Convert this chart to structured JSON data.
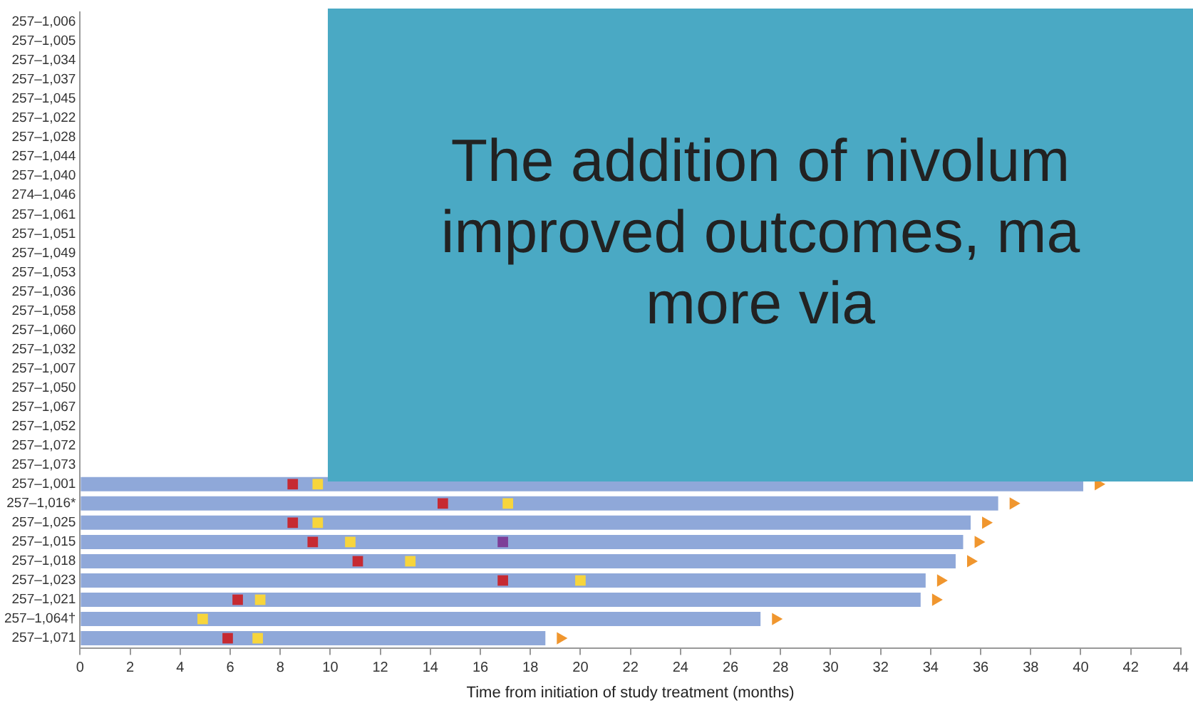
{
  "chart_data": {
    "type": "bar",
    "orientation": "horizontal",
    "xlabel": "Time from initiation of study treatment (months)",
    "categories": [
      "257–1,006",
      "257–1,005",
      "257–1,034",
      "257–1,037",
      "257–1,045",
      "257–1,022",
      "257–1,028",
      "257–1,044",
      "257–1,040",
      "274–1,046",
      "257–1,061",
      "257–1,051",
      "257–1,049",
      "257–1,053",
      "257–1,036",
      "257–1,058",
      "257–1,060",
      "257–1,032",
      "257–1,007",
      "257–1,050",
      "257–1,067",
      "257–1,052",
      "257–1,072",
      "257–1,073",
      "257–1,001",
      "257–1,016*",
      "257–1,025",
      "257–1,015",
      "257–1,018",
      "257–1,023",
      "257–1,021",
      "257–1,064†",
      "257–1,071"
    ],
    "series": [
      {
        "color": "#8fa8d9",
        "values": [
          null,
          null,
          null,
          null,
          null,
          null,
          null,
          null,
          null,
          null,
          null,
          null,
          null,
          null,
          null,
          null,
          null,
          null,
          null,
          null,
          null,
          null,
          null,
          null,
          40.1,
          36.7,
          35.6,
          35.3,
          35.0,
          33.8,
          33.6,
          27.2,
          18.6
        ]
      },
      {
        "type": "scatter",
        "marker": "square",
        "color": "#c62a32",
        "values": [
          null,
          null,
          null,
          null,
          null,
          null,
          null,
          null,
          null,
          null,
          null,
          null,
          null,
          null,
          null,
          null,
          null,
          null,
          null,
          null,
          null,
          null,
          null,
          null,
          8.5,
          14.5,
          8.5,
          9.3,
          11.1,
          16.9,
          6.3,
          null,
          5.9
        ]
      },
      {
        "type": "scatter",
        "marker": "square",
        "color": "#f7d53c",
        "values": [
          null,
          null,
          null,
          null,
          null,
          null,
          null,
          null,
          null,
          null,
          null,
          null,
          null,
          null,
          null,
          null,
          null,
          null,
          null,
          null,
          null,
          null,
          null,
          null,
          9.5,
          17.1,
          9.5,
          10.8,
          13.2,
          20.0,
          7.2,
          4.9,
          7.1
        ]
      },
      {
        "type": "scatter",
        "marker": "square",
        "color": "#7d3f98",
        "values": [
          null,
          null,
          null,
          null,
          null,
          null,
          null,
          null,
          null,
          null,
          null,
          null,
          null,
          null,
          null,
          null,
          null,
          null,
          null,
          null,
          null,
          null,
          null,
          null,
          null,
          null,
          null,
          16.9,
          null,
          null,
          null,
          null,
          null
        ]
      },
      {
        "type": "scatter",
        "marker": "triangle",
        "color": "#f0962e",
        "values": [
          null,
          null,
          null,
          null,
          null,
          null,
          null,
          null,
          null,
          null,
          null,
          null,
          null,
          null,
          null,
          null,
          null,
          null,
          null,
          null,
          null,
          null,
          null,
          null,
          40.7,
          37.3,
          36.2,
          35.9,
          35.6,
          34.4,
          34.2,
          27.8,
          19.2
        ]
      }
    ],
    "xlim": [
      0,
      44
    ],
    "xticks": [
      0,
      2,
      4,
      6,
      8,
      10,
      12,
      14,
      16,
      18,
      20,
      22,
      24,
      26,
      28,
      30,
      32,
      34,
      36,
      38,
      40,
      42,
      44
    ],
    "grid": false,
    "legend": false,
    "annotations": [
      "The addition of nivolum\nimproved outcomes, ma\nmore via"
    ]
  }
}
